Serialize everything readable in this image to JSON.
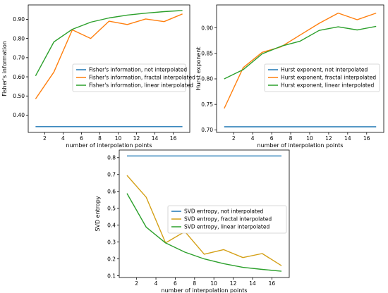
{
  "chart_data": [
    {
      "type": "line",
      "xlabel": "number of interpolation points",
      "ylabel": "Fisher's information",
      "xticks": [
        2,
        4,
        6,
        8,
        10,
        12,
        14,
        16
      ],
      "yticks": [
        0.4,
        0.5,
        0.6,
        0.7,
        0.8,
        0.9
      ],
      "xlim": [
        0.2,
        17.8
      ],
      "ylim": [
        0.31,
        0.975
      ],
      "legend_position": "center-right",
      "series": [
        {
          "name": "Fisher's information, not interpolated",
          "color": "#1f77b4",
          "x": [
            1,
            17
          ],
          "y": [
            0.34,
            0.34
          ]
        },
        {
          "name": "Fisher's information, fractal interpolated",
          "color": "#ff7f0e",
          "x": [
            1,
            3,
            5,
            7,
            9,
            11,
            13,
            15,
            17
          ],
          "y": [
            0.485,
            0.625,
            0.845,
            0.8,
            0.89,
            0.873,
            0.902,
            0.888,
            0.928
          ]
        },
        {
          "name": "Fisher's information, linear interpolated",
          "color": "#2ca02c",
          "x": [
            1,
            3,
            5,
            7,
            9,
            11,
            13,
            15,
            17
          ],
          "y": [
            0.605,
            0.782,
            0.848,
            0.885,
            0.907,
            0.922,
            0.932,
            0.94,
            0.946
          ]
        }
      ]
    },
    {
      "type": "line",
      "xlabel": "number of interpolation points",
      "ylabel": "Hurst exponent",
      "xticks": [
        2,
        4,
        6,
        8,
        10,
        12,
        14,
        16
      ],
      "yticks": [
        0.7,
        0.75,
        0.8,
        0.85,
        0.9
      ],
      "xlim": [
        0.2,
        17.8
      ],
      "ylim": [
        0.695,
        0.945
      ],
      "legend_position": "center-right",
      "series": [
        {
          "name": "Hurst exponent, not interpolated",
          "color": "#1f77b4",
          "x": [
            1,
            17
          ],
          "y": [
            0.706,
            0.706
          ]
        },
        {
          "name": "Hurst exponent, fractal interpolated",
          "color": "#ff7f0e",
          "x": [
            1,
            3,
            5,
            7,
            9,
            11,
            13,
            15,
            17
          ],
          "y": [
            0.742,
            0.822,
            0.852,
            0.863,
            0.886,
            0.909,
            0.929,
            0.916,
            0.929
          ]
        },
        {
          "name": "Hurst exponent, linear interpolated",
          "color": "#2ca02c",
          "x": [
            1,
            3,
            5,
            7,
            9,
            11,
            13,
            15,
            17
          ],
          "y": [
            0.8,
            0.818,
            0.849,
            0.864,
            0.874,
            0.895,
            0.902,
            0.896,
            0.903
          ]
        }
      ]
    },
    {
      "type": "line",
      "xlabel": "number of interpolation points",
      "ylabel": "SVD entropy",
      "xticks": [
        2,
        4,
        6,
        8,
        10,
        12,
        14,
        16
      ],
      "yticks": [
        0.1,
        0.2,
        0.3,
        0.4,
        0.5,
        0.6,
        0.7,
        0.8
      ],
      "xlim": [
        0.2,
        17.8
      ],
      "ylim": [
        0.09,
        0.845
      ],
      "legend_position": "center-right",
      "series": [
        {
          "name": "SVD entropy, not interpolated",
          "color": "#1f77b4",
          "x": [
            1,
            17
          ],
          "y": [
            0.81,
            0.81
          ]
        },
        {
          "name": "SVD entropy, fractal interpolated",
          "color": "#d4a017",
          "x": [
            1,
            3,
            5,
            7,
            9,
            11,
            13,
            15,
            17
          ],
          "y": [
            0.695,
            0.565,
            0.295,
            0.362,
            0.228,
            0.255,
            0.208,
            0.232,
            0.16
          ]
        },
        {
          "name": "SVD entropy, linear interpolated",
          "color": "#2ca02c",
          "x": [
            1,
            3,
            5,
            7,
            9,
            11,
            13,
            15,
            17
          ],
          "y": [
            0.588,
            0.388,
            0.295,
            0.24,
            0.2,
            0.172,
            0.15,
            0.138,
            0.127
          ]
        }
      ]
    }
  ]
}
